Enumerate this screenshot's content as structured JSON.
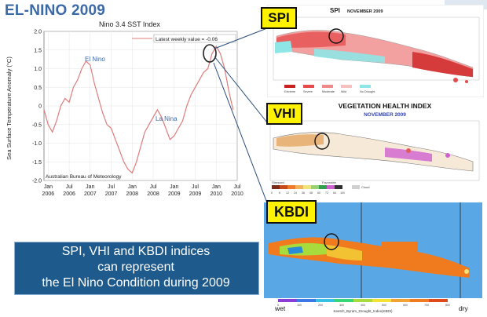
{
  "title": "EL-NINO 2009",
  "chart_data": {
    "type": "line",
    "title": "Nino 3.4 SST Index",
    "ylabel": "Sea Surface Temperature Anomaly (°C)",
    "legend": "Latest weekly value = -0.06",
    "source": "Australian Bureau of Meteorology",
    "annotations": [
      "El Nino",
      "La Nina"
    ],
    "ylim": [
      -2.0,
      2.0
    ],
    "yticks": [
      "2.0",
      "1.5",
      "1.0",
      "0.5",
      "0",
      "-0.5",
      "-1.0",
      "-1.5",
      "-2.0"
    ],
    "xticks": [
      [
        "Jan",
        "2006"
      ],
      [
        "Jul",
        "2006"
      ],
      [
        "Jan",
        "2007"
      ],
      [
        "Jul",
        "2007"
      ],
      [
        "Jan",
        "2008"
      ],
      [
        "Jul",
        "2008"
      ],
      [
        "Jan",
        "2009"
      ],
      [
        "Jul",
        "2009"
      ],
      [
        "Jan",
        "2010"
      ],
      [
        "Jul",
        "2010"
      ]
    ],
    "xlim": [
      2005.9,
      2010.5
    ],
    "series": [
      {
        "color": "#e07b7b",
        "x": [
          2005.9,
          2006.0,
          2006.1,
          2006.2,
          2006.3,
          2006.4,
          2006.5,
          2006.6,
          2006.7,
          2006.8,
          2006.9,
          2007.0,
          2007.1,
          2007.2,
          2007.3,
          2007.4,
          2007.5,
          2007.6,
          2007.7,
          2007.8,
          2007.9,
          2008.0,
          2008.1,
          2008.2,
          2008.3,
          2008.4,
          2008.5,
          2008.6,
          2008.7,
          2008.8,
          2008.9,
          2009.0,
          2009.1,
          2009.2,
          2009.3,
          2009.4,
          2009.5,
          2009.6,
          2009.7,
          2009.8,
          2009.9,
          2010.0,
          2010.1,
          2010.2,
          2010.3,
          2010.4
        ],
        "y": [
          -0.1,
          -0.5,
          -0.7,
          -0.4,
          0.0,
          0.2,
          0.1,
          0.5,
          0.7,
          1.0,
          1.2,
          1.1,
          0.6,
          0.2,
          -0.2,
          -0.5,
          -0.6,
          -0.9,
          -1.2,
          -1.5,
          -1.7,
          -1.8,
          -1.5,
          -1.1,
          -0.7,
          -0.5,
          -0.3,
          -0.1,
          -0.3,
          -0.6,
          -0.9,
          -0.8,
          -0.6,
          -0.4,
          0.0,
          0.3,
          0.5,
          0.7,
          0.9,
          1.0,
          1.4,
          1.6,
          1.4,
          1.0,
          0.4,
          -0.1
        ]
      }
    ]
  },
  "panels": {
    "spi": {
      "label": "SPI",
      "map_title": "SPI",
      "map_subtitle": "NOVEMBER 2009",
      "legend": [
        "Extreme",
        "Severe",
        "Moderate",
        "Mild",
        "No Drought"
      ]
    },
    "vhi": {
      "label": "VHI",
      "map_title": "VEGETATION HEALTH INDEX",
      "map_subtitle": "NOVEMBER 2009",
      "legend_left": "Stressed",
      "legend_right": "Favorable",
      "legend_cloud": "Cloud",
      "ticks": [
        "0",
        "6",
        "12",
        "24",
        "36",
        "48",
        "60",
        "72",
        "84",
        "100"
      ]
    },
    "kbdi": {
      "label": "KBDI",
      "colorbar_label": "Keetch_Byram_Drought_Index(KBDI)",
      "wet": "wet",
      "dry": "dry",
      "ticks": [
        "0",
        "100",
        "200",
        "300",
        "400",
        "500",
        "600",
        "700",
        "800"
      ]
    }
  },
  "banner": {
    "line1": "SPI, VHI and KBDI indices",
    "line2": "can represent",
    "line3": "the El Nino Condition during 2009"
  },
  "colors": {
    "title": "#3b69a8",
    "banner_bg": "#1e5a8c",
    "label_bg": "#fff200",
    "spi_red": "#e64b4b",
    "spi_cyan": "#8fe6e6",
    "kbdi_sea": "#5aa7e6",
    "kbdi_dry": "#f07a1e"
  }
}
